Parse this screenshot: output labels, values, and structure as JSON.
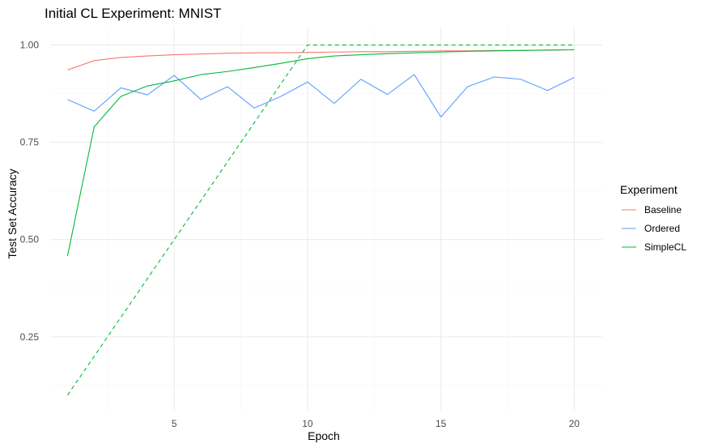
{
  "chart_data": {
    "type": "line",
    "title": "Initial CL Experiment: MNIST",
    "xlabel": "Epoch",
    "ylabel": "Test Set Accuracy",
    "xlim": [
      0.35,
      21.05
    ],
    "ylim": [
      0.06,
      1.045
    ],
    "x_ticks": [
      5,
      10,
      15,
      20
    ],
    "y_ticks": [
      0.25,
      0.5,
      0.75,
      1.0
    ],
    "y_tick_labels": [
      "0.25",
      "0.50",
      "0.75",
      "1.00"
    ],
    "grid": true,
    "legend": {
      "title": "Experiment",
      "position": "right",
      "entries": [
        "Baseline",
        "Ordered",
        "SimpleCL"
      ]
    },
    "x": [
      1,
      2,
      3,
      4,
      5,
      6,
      7,
      8,
      9,
      10,
      11,
      12,
      13,
      14,
      15,
      16,
      17,
      18,
      19,
      20
    ],
    "series": [
      {
        "name": "Baseline",
        "color": "#F8766D",
        "dash": "solid",
        "values": [
          0.936,
          0.96,
          0.968,
          0.972,
          0.975,
          0.977,
          0.979,
          0.98,
          0.98,
          0.981,
          0.982,
          0.983,
          0.983,
          0.984,
          0.985,
          0.985,
          0.986,
          0.986,
          0.987,
          0.988
        ]
      },
      {
        "name": "Ordered",
        "color": "#619CFF",
        "dash": "solid",
        "values": [
          0.86,
          0.83,
          0.89,
          0.872,
          0.922,
          0.86,
          0.893,
          0.838,
          0.868,
          0.905,
          0.85,
          0.912,
          0.873,
          0.924,
          0.815,
          0.893,
          0.918,
          0.912,
          0.883,
          0.917
        ]
      },
      {
        "name": "SimpleCL",
        "color": "#00BA38",
        "dash": "solid",
        "values": [
          0.458,
          0.79,
          0.868,
          0.895,
          0.908,
          0.924,
          0.932,
          0.942,
          0.953,
          0.965,
          0.972,
          0.975,
          0.978,
          0.98,
          0.982,
          0.984,
          0.985,
          0.986,
          0.987,
          0.988
        ]
      },
      {
        "color": "#00BA38",
        "dash": "dashed",
        "x": [
          1,
          10,
          20
        ],
        "values": [
          0.1,
          1.0,
          1.0
        ]
      }
    ]
  }
}
